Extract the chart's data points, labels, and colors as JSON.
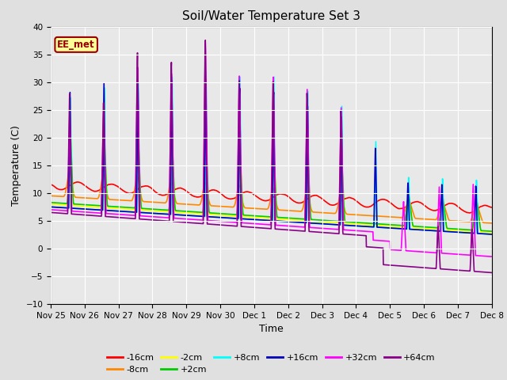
{
  "title": "Soil/Water Temperature Set 3",
  "xlabel": "Time",
  "ylabel": "Temperature (C)",
  "ylim": [
    -10,
    40
  ],
  "xlim": [
    0,
    13
  ],
  "xtick_labels": [
    "Nov 25",
    "Nov 26",
    "Nov 27",
    "Nov 28",
    "Nov 29",
    "Nov 30",
    "Dec 1",
    "Dec 2",
    "Dec 3",
    "Dec 4",
    "Dec 5",
    "Dec 6",
    "Dec 7",
    "Dec 8"
  ],
  "background_color": "#e0e0e0",
  "plot_bg_color": "#e8e8e8",
  "annotation_text": "EE_met",
  "annotation_bg": "#ffff99",
  "annotation_border": "#990000",
  "grid_color": "#ffffff",
  "series": {
    "-16cm": {
      "color": "#ff0000",
      "lw": 1.2
    },
    "-8cm": {
      "color": "#ff8800",
      "lw": 1.2
    },
    "-2cm": {
      "color": "#ffff00",
      "lw": 1.2
    },
    "+2cm": {
      "color": "#00cc00",
      "lw": 1.2
    },
    "+8cm": {
      "color": "#00ffff",
      "lw": 1.2
    },
    "+16cm": {
      "color": "#0000bb",
      "lw": 1.2
    },
    "+32cm": {
      "color": "#ff00ff",
      "lw": 1.2
    },
    "+64cm": {
      "color": "#880088",
      "lw": 1.2
    }
  },
  "legend_ncol_row1": 6,
  "legend_fontsize": 8
}
